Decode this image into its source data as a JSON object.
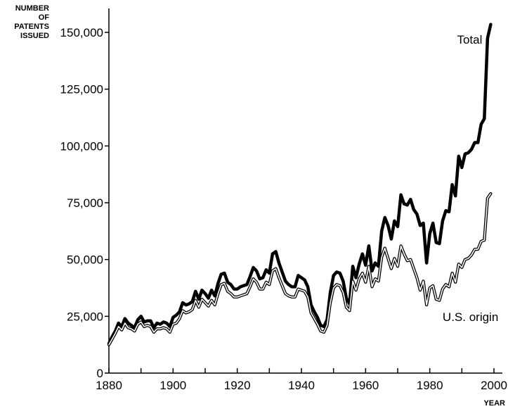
{
  "chart_data": {
    "type": "line",
    "title": "",
    "ylabel_lines": [
      "NUMBER",
      "OF",
      "PATENTS",
      "ISSUED"
    ],
    "xlabel": "YEAR",
    "xlim": [
      1880,
      2000
    ],
    "ylim": [
      0,
      150000
    ],
    "x_ticks": [
      1880,
      1900,
      1920,
      1940,
      1960,
      1980,
      2000
    ],
    "x_tick_labels": [
      "1880",
      "1900",
      "1920",
      "1940",
      "1960",
      "1980",
      "2000"
    ],
    "y_ticks": [
      0,
      25000,
      50000,
      75000,
      100000,
      125000,
      150000
    ],
    "y_tick_labels": [
      "0",
      "25,000",
      "50,000",
      "75,000",
      "100,000",
      "125,000",
      "150,000"
    ],
    "grid": false,
    "legend": "inline labels",
    "series": [
      {
        "name": "Total",
        "style": "bold-solid",
        "x": [
          1880,
          1881,
          1882,
          1883,
          1884,
          1885,
          1886,
          1887,
          1888,
          1889,
          1890,
          1891,
          1892,
          1893,
          1894,
          1895,
          1896,
          1897,
          1898,
          1899,
          1900,
          1901,
          1902,
          1903,
          1904,
          1905,
          1906,
          1907,
          1908,
          1909,
          1910,
          1911,
          1912,
          1913,
          1914,
          1915,
          1916,
          1917,
          1918,
          1919,
          1920,
          1921,
          1922,
          1923,
          1924,
          1925,
          1926,
          1927,
          1928,
          1929,
          1930,
          1931,
          1932,
          1933,
          1934,
          1935,
          1936,
          1937,
          1938,
          1939,
          1940,
          1941,
          1942,
          1943,
          1944,
          1945,
          1946,
          1947,
          1948,
          1949,
          1950,
          1951,
          1952,
          1953,
          1954,
          1955,
          1956,
          1957,
          1958,
          1959,
          1960,
          1961,
          1962,
          1963,
          1964,
          1965,
          1966,
          1967,
          1968,
          1969,
          1970,
          1971,
          1972,
          1973,
          1974,
          1975,
          1976,
          1977,
          1978,
          1979,
          1980,
          1981,
          1982,
          1983,
          1984,
          1985,
          1986,
          1987,
          1988,
          1989,
          1990,
          1991,
          1992,
          1993,
          1994,
          1995,
          1996,
          1997,
          1998,
          1999
        ],
        "y": [
          13000,
          16000,
          18500,
          22000,
          20500,
          24000,
          22000,
          21000,
          20000,
          23500,
          25000,
          22500,
          23000,
          23000,
          20000,
          22000,
          21500,
          22500,
          22000,
          20500,
          24500,
          25500,
          27000,
          31000,
          30000,
          30500,
          31500,
          36000,
          32500,
          36500,
          35000,
          33000,
          36500,
          34000,
          39500,
          43500,
          44000,
          40000,
          39000,
          37000,
          37000,
          38000,
          38500,
          39000,
          42500,
          46500,
          45000,
          41500,
          42000,
          45500,
          44000,
          52500,
          53500,
          48500,
          44500,
          40500,
          39000,
          38000,
          38000,
          43000,
          42000,
          41000,
          38000,
          30000,
          27000,
          24500,
          21000,
          20500,
          23500,
          35500,
          43000,
          44500,
          44000,
          40500,
          33000,
          30500,
          47000,
          42000,
          48000,
          52500,
          47500,
          56000,
          45000,
          48500,
          47000,
          62500,
          68500,
          65000,
          59000,
          67000,
          64500,
          78500,
          74500,
          74000,
          76500,
          72000,
          70000,
          65000,
          66000,
          48500,
          61500,
          66000,
          57500,
          57000,
          67000,
          71500,
          71000,
          83000,
          78000,
          95500,
          90500,
          96500,
          97000,
          98500,
          101500,
          101500,
          109500,
          112000,
          147500,
          153500
        ]
      },
      {
        "name": "U.S. origin",
        "style": "double-outline",
        "x": [
          1880,
          1881,
          1882,
          1883,
          1884,
          1885,
          1886,
          1887,
          1888,
          1889,
          1890,
          1891,
          1892,
          1893,
          1894,
          1895,
          1896,
          1897,
          1898,
          1899,
          1900,
          1901,
          1902,
          1903,
          1904,
          1905,
          1906,
          1907,
          1908,
          1909,
          1910,
          1911,
          1912,
          1913,
          1914,
          1915,
          1916,
          1917,
          1918,
          1919,
          1920,
          1921,
          1922,
          1923,
          1924,
          1925,
          1926,
          1927,
          1928,
          1929,
          1930,
          1931,
          1932,
          1933,
          1934,
          1935,
          1936,
          1937,
          1938,
          1939,
          1940,
          1941,
          1942,
          1943,
          1944,
          1945,
          1946,
          1947,
          1948,
          1949,
          1950,
          1951,
          1952,
          1953,
          1954,
          1955,
          1956,
          1957,
          1958,
          1959,
          1960,
          1961,
          1962,
          1963,
          1964,
          1965,
          1966,
          1967,
          1968,
          1969,
          1970,
          1971,
          1972,
          1973,
          1974,
          1975,
          1976,
          1977,
          1978,
          1979,
          1980,
          1981,
          1982,
          1983,
          1984,
          1985,
          1986,
          1987,
          1988,
          1989,
          1990,
          1991,
          1992,
          1993,
          1994,
          1995,
          1996,
          1997,
          1998,
          1999
        ],
        "y": [
          12500,
          15000,
          17500,
          20500,
          19000,
          22000,
          20000,
          19500,
          18500,
          21500,
          22500,
          20500,
          21000,
          20500,
          18000,
          19500,
          19500,
          20000,
          19500,
          18000,
          21500,
          22000,
          24000,
          27500,
          26500,
          27000,
          28000,
          32000,
          29000,
          32500,
          31000,
          29500,
          32000,
          30000,
          35000,
          39000,
          39500,
          36000,
          35000,
          33500,
          33500,
          34000,
          34500,
          35000,
          38000,
          41500,
          40000,
          37000,
          37000,
          40000,
          39000,
          45000,
          46000,
          42000,
          38500,
          35000,
          34000,
          33500,
          33500,
          37000,
          36500,
          36000,
          33500,
          26500,
          24000,
          21500,
          18500,
          18000,
          21000,
          31000,
          37500,
          39000,
          38500,
          35500,
          29000,
          27500,
          40500,
          36500,
          41500,
          44000,
          40000,
          47000,
          38000,
          41500,
          40500,
          51000,
          55000,
          50500,
          46000,
          50500,
          47000,
          56000,
          52500,
          49500,
          50000,
          46000,
          42000,
          36500,
          40500,
          30000,
          37500,
          38500,
          32500,
          32000,
          37000,
          39000,
          38000,
          44000,
          40000,
          48000,
          46500,
          50000,
          50500,
          52000,
          54500,
          54500,
          58000,
          58500,
          77000,
          79000
        ]
      }
    ]
  }
}
